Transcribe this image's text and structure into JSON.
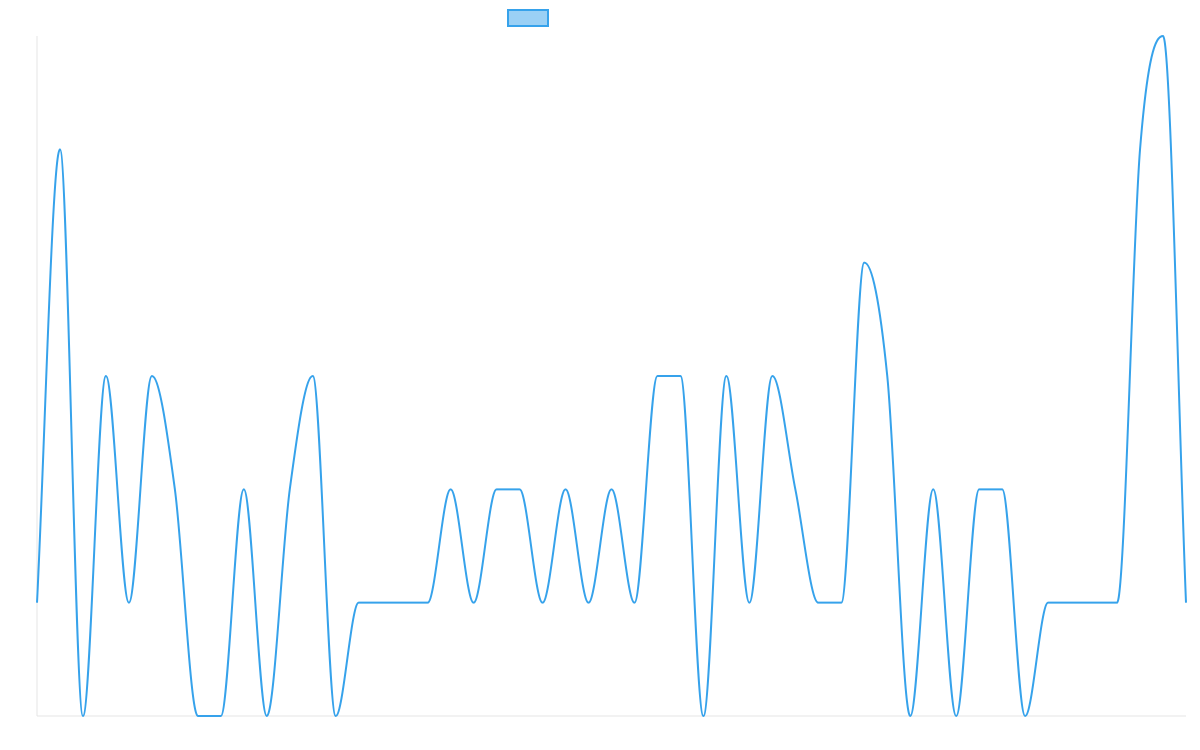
{
  "chart_data": {
    "type": "line",
    "title": "",
    "xlabel": "",
    "ylabel": "",
    "legend": {
      "position": "top-center",
      "entries": [
        {
          "label": "",
          "color": "#36a2eb",
          "fill": "#9ad0f5"
        }
      ]
    },
    "grid": false,
    "axes_visible": false,
    "ylim": [
      0,
      6
    ],
    "series": [
      {
        "name": "",
        "color": "#36a2eb",
        "values": [
          1,
          5,
          0,
          3,
          1,
          3,
          2,
          0,
          0,
          2,
          0,
          2,
          3,
          0,
          1,
          1,
          1,
          1,
          2,
          1,
          2,
          2,
          1,
          2,
          1,
          2,
          1,
          3,
          3,
          0,
          3,
          1,
          3,
          2,
          1,
          1,
          4,
          3,
          0,
          2,
          0,
          2,
          2,
          0,
          1,
          1,
          1,
          1,
          5,
          6,
          1
        ]
      }
    ]
  }
}
